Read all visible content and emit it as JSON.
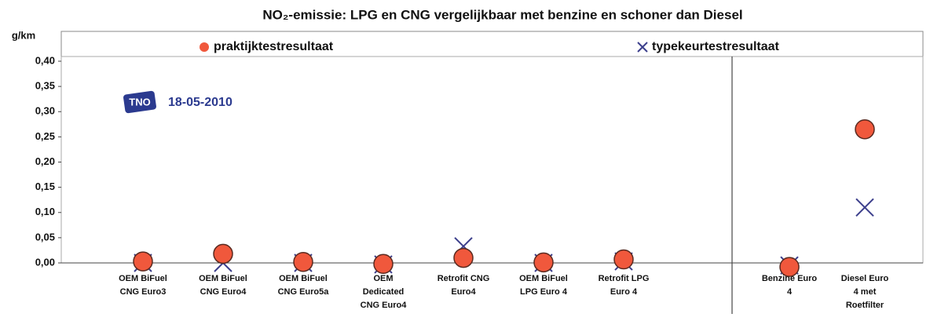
{
  "chart_data": {
    "type": "scatter",
    "title": "NO₂-emissie: LPG en CNG vergelijkbaar met benzine en schoner dan Diesel",
    "y_label": "g/km",
    "annotation": "18-05-2010",
    "logo_text": "TNO",
    "categories": [
      "OEM BiFuel CNG Euro3",
      "OEM BiFuel CNG Euro4",
      "OEM BiFuel CNG Euro5a",
      "OEM Dedicated CNG Euro4",
      "Retrofit CNG Euro4",
      "OEM BiFuel LPG Euro 4",
      "Retrofit LPG Euro 4",
      "Benzine Euro 4",
      "Diesel Euro 4 met Roetfilter"
    ],
    "series": [
      {
        "name": "praktijktestresultaat",
        "marker": "circle",
        "color": "#f0583c",
        "values": [
          0.003,
          0.018,
          0.002,
          -0.002,
          0.01,
          0.001,
          0.007,
          -0.008,
          0.265
        ]
      },
      {
        "name": "typekeurtestresultaat",
        "marker": "x",
        "color": "#3c3f8c",
        "values": [
          0.0,
          0.0,
          0.0,
          -0.003,
          0.033,
          0.0,
          0.003,
          -0.005,
          0.11
        ]
      }
    ],
    "ylim": [
      0,
      0.4
    ],
    "yticks": [
      {
        "value": 0,
        "label": "0,00"
      },
      {
        "value": 0.05,
        "label": "0,05"
      },
      {
        "value": 0.1,
        "label": "0,10"
      },
      {
        "value": 0.15,
        "label": "0,15"
      },
      {
        "value": 0.2,
        "label": "0,20"
      },
      {
        "value": 0.25,
        "label": "0,25"
      },
      {
        "value": 0.3,
        "label": "0,30"
      },
      {
        "value": 0.35,
        "label": "0,35"
      },
      {
        "value": 0.4,
        "label": "0,40"
      }
    ]
  }
}
